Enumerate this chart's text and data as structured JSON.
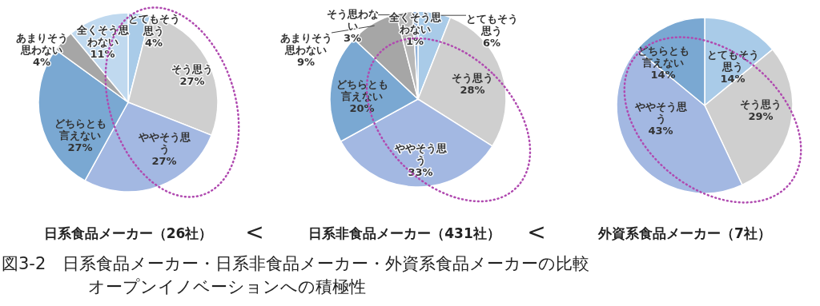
{
  "chart_data": [
    {
      "type": "pie",
      "title": "日系食品メーカー（26社）",
      "categories": [
        "とてもそう思う",
        "そう思う",
        "ややそう思う",
        "どちらとも言えない",
        "あまりそう思わない",
        "全くそう思わない"
      ],
      "values": [
        4,
        27,
        27,
        27,
        4,
        11
      ],
      "value_labels": [
        "4%",
        "27%",
        "27%",
        "27%",
        "4%",
        "11%"
      ],
      "colors": [
        "#a9cbe8",
        "#cfcfcf",
        "#a3b8e2",
        "#7aa8d2",
        "#a6a6a6",
        "#c0d9ef"
      ],
      "annotations": [
        "<",
        "図3-2　日系食品メーカー・日系非食品メーカー・外資系食品メーカーの比較",
        "オープンイノベーションへの積極性"
      ]
    },
    {
      "type": "pie",
      "title": "日系非食品メーカー（431社）",
      "categories": [
        "とてもそう思う",
        "そう思う",
        "ややそう思う",
        "どちらとも言えない",
        "あまりそう思わない",
        "そう思わない",
        "全くそう思わない"
      ],
      "values": [
        6,
        28,
        33,
        20,
        9,
        3,
        1
      ],
      "value_labels": [
        "6%",
        "28%",
        "33%",
        "20%",
        "9%",
        "3%",
        "1%"
      ],
      "colors": [
        "#a9cbe8",
        "#cfcfcf",
        "#a3b8e2",
        "#7aa8d2",
        "#a6a6a6",
        "#b8b8b8",
        "#8fb0d8"
      ],
      "annotations": [
        "<"
      ]
    },
    {
      "type": "pie",
      "title": "外資系食品メーカー（7社）",
      "categories": [
        "とてもそう思う",
        "そう思う",
        "ややそう思う",
        "どちらとも言えない"
      ],
      "values": [
        14,
        29,
        43,
        14
      ],
      "value_labels": [
        "14%",
        "29%",
        "43%",
        "14%"
      ],
      "colors": [
        "#a9cbe8",
        "#cfcfcf",
        "#a3b8e2",
        "#7aa8d2"
      ]
    }
  ]
}
